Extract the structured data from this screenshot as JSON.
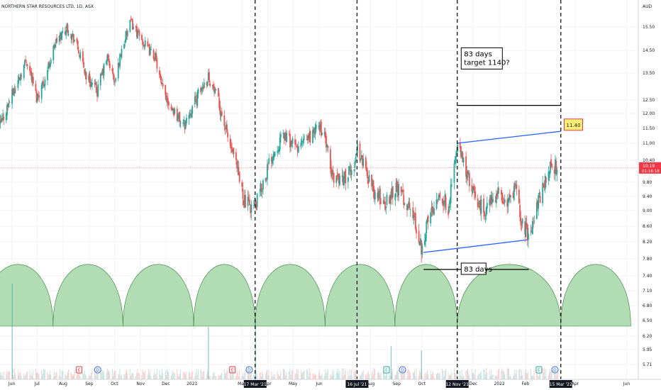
{
  "chart_data": {
    "type": "candlestick",
    "title": "NORTHERN STAR RESOURCES LTD, 1D, ASX",
    "currency": "AUD",
    "price_axis": {
      "ticks": [
        15.5,
        14.5,
        13.5,
        12.5,
        12.0,
        11.5,
        11.0,
        10.4,
        9.8,
        9.4,
        9.0,
        8.6,
        8.2,
        7.8,
        7.4,
        7.1,
        6.8,
        6.5,
        6.2,
        5.95,
        5.71
      ],
      "tick_labels": [
        "15.50",
        "14.50",
        "13.50",
        "12.50",
        "12.00",
        "11.50",
        "11.00",
        "10.40",
        "9.80",
        "9.40",
        "9.00",
        "8.60",
        "8.20",
        "7.80",
        "7.40",
        "7.10",
        "6.80",
        "6.50",
        "6.20",
        "5.95",
        "5.71"
      ]
    },
    "time_axis": {
      "range": [
        "2020-05-18",
        "2022-06-15"
      ],
      "ticks": [
        {
          "date": "2020-06-01",
          "label": "Jun"
        },
        {
          "date": "2020-07-01",
          "label": "Jul"
        },
        {
          "date": "2020-08-01",
          "label": "Aug"
        },
        {
          "date": "2020-09-01",
          "label": "Sep"
        },
        {
          "date": "2020-10-01",
          "label": "Oct"
        },
        {
          "date": "2020-11-01",
          "label": "Nov"
        },
        {
          "date": "2020-12-01",
          "label": "Dec"
        },
        {
          "date": "2021-01-01",
          "label": "2021"
        },
        {
          "date": "2021-03-01",
          "label": "Mar"
        },
        {
          "date": "2021-04-01",
          "label": "Apr"
        },
        {
          "date": "2021-05-01",
          "label": "May"
        },
        {
          "date": "2021-06-01",
          "label": "Jun"
        },
        {
          "date": "2021-08-01",
          "label": "Aug"
        },
        {
          "date": "2021-09-01",
          "label": "Sep"
        },
        {
          "date": "2021-10-01",
          "label": "Oct"
        },
        {
          "date": "2021-12-01",
          "label": "Dec"
        },
        {
          "date": "2022-01-01",
          "label": "2022"
        },
        {
          "date": "2022-02-01",
          "label": "Feb"
        },
        {
          "date": "2022-04-01",
          "label": "Apr"
        },
        {
          "date": "2022-06-01",
          "label": "Jun"
        }
      ],
      "highlighted_dates": [
        {
          "date": "2021-03-17",
          "label": "17 Mar '21"
        },
        {
          "date": "2021-07-16",
          "label": "16 Jul '21"
        },
        {
          "date": "2021-11-12",
          "label": "12 Nov '21"
        },
        {
          "date": "2022-03-15",
          "label": "15 Mar '22"
        }
      ]
    },
    "close_path": [
      {
        "date": "2020-05-18",
        "close": 11.6
      },
      {
        "date": "2020-05-28",
        "close": 12.4
      },
      {
        "date": "2020-06-08",
        "close": 13.2
      },
      {
        "date": "2020-06-18",
        "close": 14.1
      },
      {
        "date": "2020-06-30",
        "close": 12.6
      },
      {
        "date": "2020-07-10",
        "close": 13.3
      },
      {
        "date": "2020-07-22",
        "close": 14.8
      },
      {
        "date": "2020-08-05",
        "close": 15.5
      },
      {
        "date": "2020-08-15",
        "close": 14.9
      },
      {
        "date": "2020-08-28",
        "close": 13.4
      },
      {
        "date": "2020-09-10",
        "close": 12.8
      },
      {
        "date": "2020-09-22",
        "close": 14.2
      },
      {
        "date": "2020-10-01",
        "close": 13.1
      },
      {
        "date": "2020-10-10",
        "close": 14.7
      },
      {
        "date": "2020-10-20",
        "close": 15.7
      },
      {
        "date": "2020-10-30",
        "close": 15.1
      },
      {
        "date": "2020-11-08",
        "close": 14.6
      },
      {
        "date": "2020-11-18",
        "close": 14.2
      },
      {
        "date": "2020-11-25",
        "close": 13.0
      },
      {
        "date": "2020-12-08",
        "close": 12.2
      },
      {
        "date": "2020-12-22",
        "close": 11.6
      },
      {
        "date": "2021-01-08",
        "close": 12.7
      },
      {
        "date": "2021-01-20",
        "close": 13.4
      },
      {
        "date": "2021-02-01",
        "close": 12.4
      },
      {
        "date": "2021-02-12",
        "close": 11.2
      },
      {
        "date": "2021-02-22",
        "close": 10.2
      },
      {
        "date": "2021-03-05",
        "close": 9.2
      },
      {
        "date": "2021-03-17",
        "close": 9.1
      },
      {
        "date": "2021-03-26",
        "close": 9.8
      },
      {
        "date": "2021-04-06",
        "close": 10.6
      },
      {
        "date": "2021-04-20",
        "close": 11.3
      },
      {
        "date": "2021-05-05",
        "close": 10.8
      },
      {
        "date": "2021-05-20",
        "close": 11.2
      },
      {
        "date": "2021-06-01",
        "close": 11.6
      },
      {
        "date": "2021-06-08",
        "close": 11.1
      },
      {
        "date": "2021-06-15",
        "close": 10.0
      },
      {
        "date": "2021-06-30",
        "close": 9.9
      },
      {
        "date": "2021-07-10",
        "close": 10.1
      },
      {
        "date": "2021-07-16",
        "close": 10.8
      },
      {
        "date": "2021-07-25",
        "close": 10.2
      },
      {
        "date": "2021-08-05",
        "close": 9.5
      },
      {
        "date": "2021-08-18",
        "close": 9.2
      },
      {
        "date": "2021-08-30",
        "close": 9.7
      },
      {
        "date": "2021-09-10",
        "close": 9.3
      },
      {
        "date": "2021-09-20",
        "close": 8.9
      },
      {
        "date": "2021-09-30",
        "close": 8.1
      },
      {
        "date": "2021-10-10",
        "close": 8.9
      },
      {
        "date": "2021-10-20",
        "close": 9.5
      },
      {
        "date": "2021-11-01",
        "close": 9.1
      },
      {
        "date": "2021-11-12",
        "close": 10.9
      },
      {
        "date": "2021-11-22",
        "close": 10.1
      },
      {
        "date": "2021-12-05",
        "close": 9.2
      },
      {
        "date": "2021-12-15",
        "close": 9.0
      },
      {
        "date": "2021-12-28",
        "close": 9.5
      },
      {
        "date": "2022-01-10",
        "close": 9.2
      },
      {
        "date": "2022-01-20",
        "close": 9.6
      },
      {
        "date": "2022-01-28",
        "close": 8.6
      },
      {
        "date": "2022-02-05",
        "close": 8.4
      },
      {
        "date": "2022-02-15",
        "close": 9.2
      },
      {
        "date": "2022-02-25",
        "close": 9.9
      },
      {
        "date": "2022-03-04",
        "close": 10.3
      },
      {
        "date": "2022-03-10",
        "close": 10.19
      }
    ],
    "last_price": {
      "value": 10.19,
      "label": "10.19",
      "countdown": "01:16:18"
    },
    "annotations": [
      {
        "kind": "text-box",
        "text_lines": [
          "83 days",
          "target 1140?"
        ],
        "date": "2021-11-15",
        "price": 13.8
      },
      {
        "kind": "text-box",
        "text_lines": [
          "83 days"
        ],
        "date": "2021-11-15",
        "price": 7.5
      },
      {
        "kind": "price-label",
        "text": "11.40",
        "date": "2022-03-19",
        "price": 11.6
      }
    ],
    "drawn_lines": [
      {
        "name": "upper-channel-line",
        "color": "#2962ff",
        "from": {
          "date": "2021-11-12",
          "price": 11.0
        },
        "to": {
          "date": "2022-03-15",
          "price": 11.4
        }
      },
      {
        "name": "lower-channel-line",
        "color": "#2962ff",
        "from": {
          "date": "2021-10-03",
          "price": 7.95
        },
        "to": {
          "date": "2022-02-03",
          "price": 8.25
        }
      },
      {
        "name": "target-line",
        "color": "#000000",
        "from": {
          "date": "2021-11-12",
          "price": 12.3
        },
        "to": {
          "date": "2022-03-15",
          "price": 12.3
        }
      },
      {
        "name": "span-line-83-days",
        "color": "#000000",
        "from": {
          "date": "2021-10-03",
          "price": 7.55
        },
        "to": {
          "date": "2022-02-05",
          "price": 7.55
        }
      }
    ],
    "cycles": {
      "color": "#a5d6a7",
      "boundaries": [
        "2020-04-28",
        "2020-07-20",
        "2020-10-11",
        "2021-01-03",
        "2021-03-17",
        "2021-06-08",
        "2021-08-30",
        "2021-11-12",
        "2022-03-15",
        "2022-06-06"
      ]
    },
    "volume_spikes": [
      {
        "date": "2020-06-01",
        "relative": 1.0
      },
      {
        "date": "2021-01-20",
        "relative": 0.55
      },
      {
        "date": "2021-03-17",
        "relative": 0.6
      },
      {
        "date": "2021-08-25",
        "relative": 0.35
      },
      {
        "date": "2021-09-30",
        "relative": 0.3
      }
    ],
    "event_markers": [
      {
        "date": "2020-08-20",
        "type": "E",
        "color": "#f23645"
      },
      {
        "date": "2020-09-11",
        "type": "D",
        "color": "#2962ff"
      },
      {
        "date": "2021-02-18",
        "type": "E",
        "color": "#f23645"
      },
      {
        "date": "2021-03-10",
        "type": "D",
        "color": "#2962ff"
      },
      {
        "date": "2021-08-20",
        "type": "E",
        "color": "#26a69a"
      },
      {
        "date": "2021-09-08",
        "type": "D",
        "color": "#2962ff"
      },
      {
        "date": "2022-02-17",
        "type": "E",
        "color": "#26a69a"
      },
      {
        "date": "2022-03-08",
        "type": "D",
        "color": "#2962ff"
      }
    ],
    "colors": {
      "up": "#26a69a",
      "down": "#ef5350",
      "price_line": "#f23645",
      "grid": "#f0f3fa"
    }
  }
}
